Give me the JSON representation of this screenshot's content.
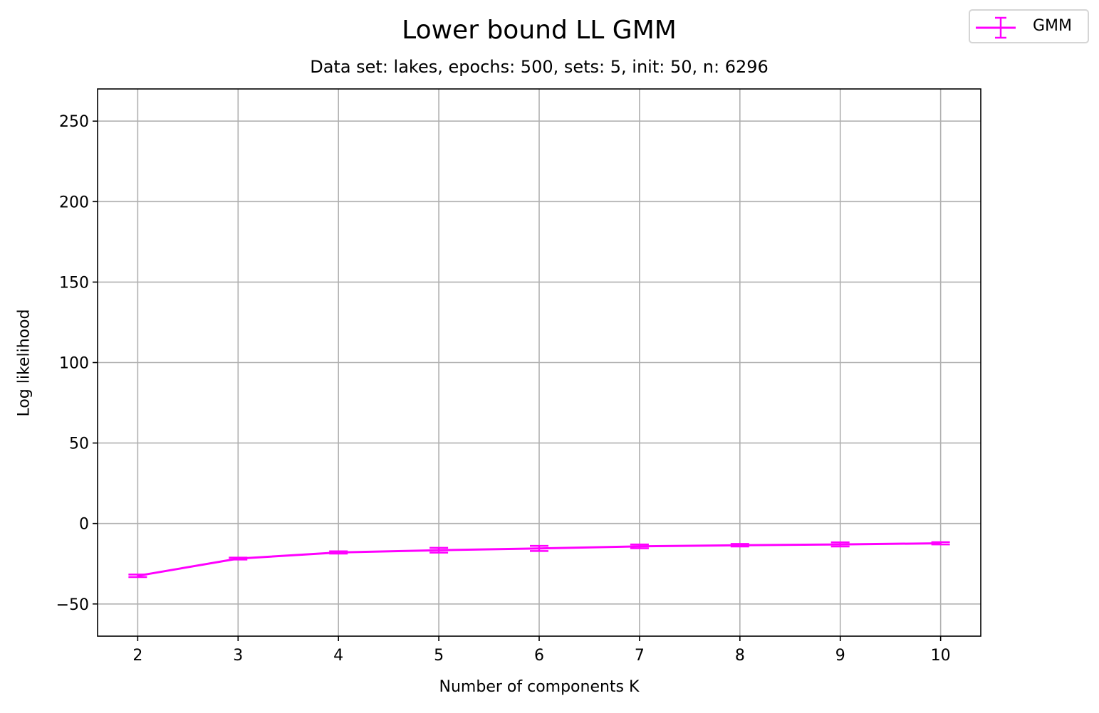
{
  "chart_data": {
    "type": "line",
    "title": "Lower bound LL GMM",
    "subtitle": "Data set:  lakes, epochs: 500, sets: 5, init: 50, n: 6296",
    "xlabel": "Number of components K",
    "ylabel": "Log likelihood",
    "x": [
      2,
      3,
      4,
      5,
      6,
      7,
      8,
      9,
      10
    ],
    "xlim": [
      1.6,
      10.4
    ],
    "ylim": [
      -70,
      270
    ],
    "xticks": [
      2,
      3,
      4,
      5,
      6,
      7,
      8,
      9,
      10
    ],
    "yticks": [
      -50,
      0,
      50,
      100,
      150,
      200,
      250
    ],
    "ytick_labels": [
      "−50",
      "0",
      "50",
      "100",
      "150",
      "200",
      "250"
    ],
    "grid": true,
    "legend_position": "top-right, outside plot",
    "series": [
      {
        "name": "GMM",
        "color": "#ff00ff",
        "values": [
          -32.5,
          -21.8,
          -18.0,
          -16.6,
          -15.5,
          -14.2,
          -13.5,
          -13.0,
          -12.3
        ],
        "errors": [
          0.8,
          0.6,
          0.7,
          1.5,
          1.6,
          1.2,
          0.8,
          1.3,
          0.7
        ]
      }
    ]
  }
}
